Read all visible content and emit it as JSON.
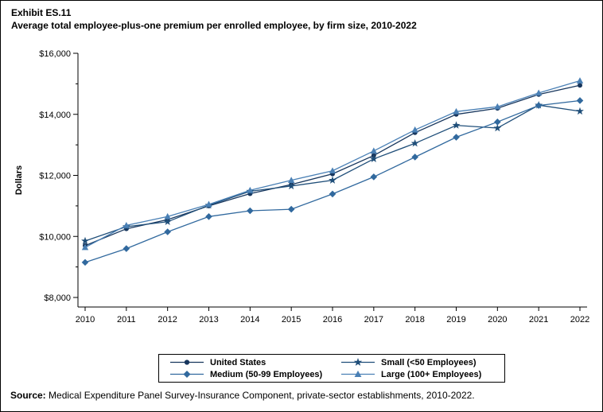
{
  "header": {
    "exhibit": "Exhibit ES.11",
    "title": "Average total employee-plus-one premium per enrolled employee, by firm size, 2010-2022"
  },
  "footer": {
    "source_label": "Source:",
    "source_text": " Medical Expenditure Panel Survey-Insurance Component, private-sector establishments, 2010-2022."
  },
  "chart_data": {
    "type": "line",
    "title": "Average total employee-plus-one premium per enrolled employee, by firm size, 2010-2022",
    "xlabel": "",
    "ylabel": "Dollars",
    "x": [
      2010,
      2011,
      2012,
      2013,
      2014,
      2015,
      2016,
      2017,
      2018,
      2019,
      2020,
      2021,
      2022
    ],
    "ylim": [
      8000,
      16000
    ],
    "y_major_ticks": [
      {
        "value": 8000,
        "label": "$8,000"
      },
      {
        "value": 10000,
        "label": "$10,000"
      },
      {
        "value": 12000,
        "label": "$12,000"
      },
      {
        "value": 14000,
        "label": "$14,000"
      },
      {
        "value": 16000,
        "label": "$16,000"
      }
    ],
    "y_minor_tick_values": [
      9000,
      11000,
      13000,
      15000
    ],
    "grid": false,
    "legend_position": "bottom",
    "series": [
      {
        "name": "United States",
        "marker": "circle",
        "color": "#17365d",
        "values": [
          9700,
          10250,
          10550,
          11000,
          11400,
          11700,
          12050,
          12650,
          13400,
          14000,
          14200,
          14650,
          14950
        ]
      },
      {
        "name": "Small (<50 Employees)",
        "marker": "star",
        "color": "#1f4e79",
        "values": [
          9850,
          10320,
          10480,
          11020,
          11480,
          11650,
          11840,
          12540,
          13050,
          13640,
          13550,
          14300,
          14100
        ]
      },
      {
        "name": "Medium (50-99 Employees)",
        "marker": "diamond",
        "color": "#31699e",
        "values": [
          9150,
          9600,
          10150,
          10650,
          10840,
          10890,
          11390,
          11950,
          12600,
          13250,
          13750,
          14290,
          14450
        ]
      },
      {
        "name": "Large (100+ Employees)",
        "marker": "triangle",
        "color": "#4a80b5",
        "values": [
          9640,
          10360,
          10650,
          11050,
          11510,
          11840,
          12150,
          12800,
          13490,
          14090,
          14250,
          14700,
          15100
        ]
      }
    ]
  }
}
